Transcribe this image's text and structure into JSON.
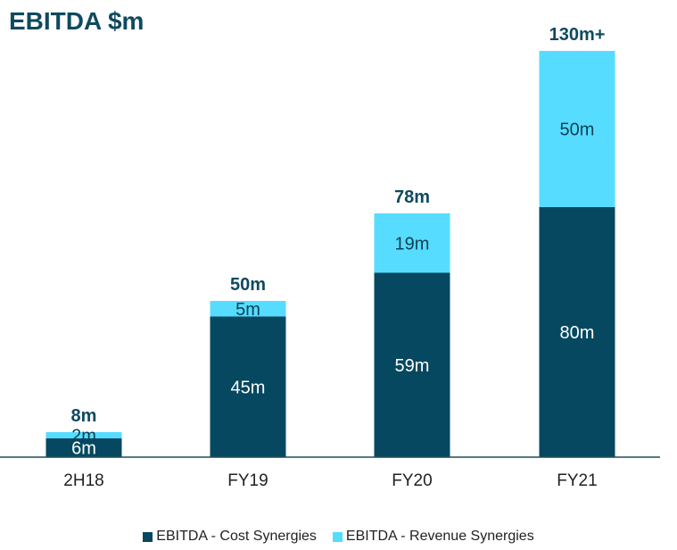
{
  "chart_data": {
    "type": "bar",
    "stacked": true,
    "title": "EBITDA $m",
    "categories": [
      "2H18",
      "FY19",
      "FY20",
      "FY21"
    ],
    "series": [
      {
        "name": "EBITDA - Cost Synergies",
        "color": "#054860",
        "values": [
          6,
          45,
          59,
          80
        ],
        "labels": [
          "6m",
          "45m",
          "59m",
          "80m"
        ]
      },
      {
        "name": "EBITDA - Revenue Synergies",
        "color": "#56dcff",
        "values": [
          2,
          5,
          19,
          50
        ],
        "labels": [
          "2m",
          "5m",
          "19m",
          "50m"
        ]
      }
    ],
    "totals": [
      "8m",
      "50m",
      "78m",
      "130m+"
    ],
    "ylim": [
      0,
      130
    ],
    "grid": false,
    "legend_position": "bottom"
  }
}
